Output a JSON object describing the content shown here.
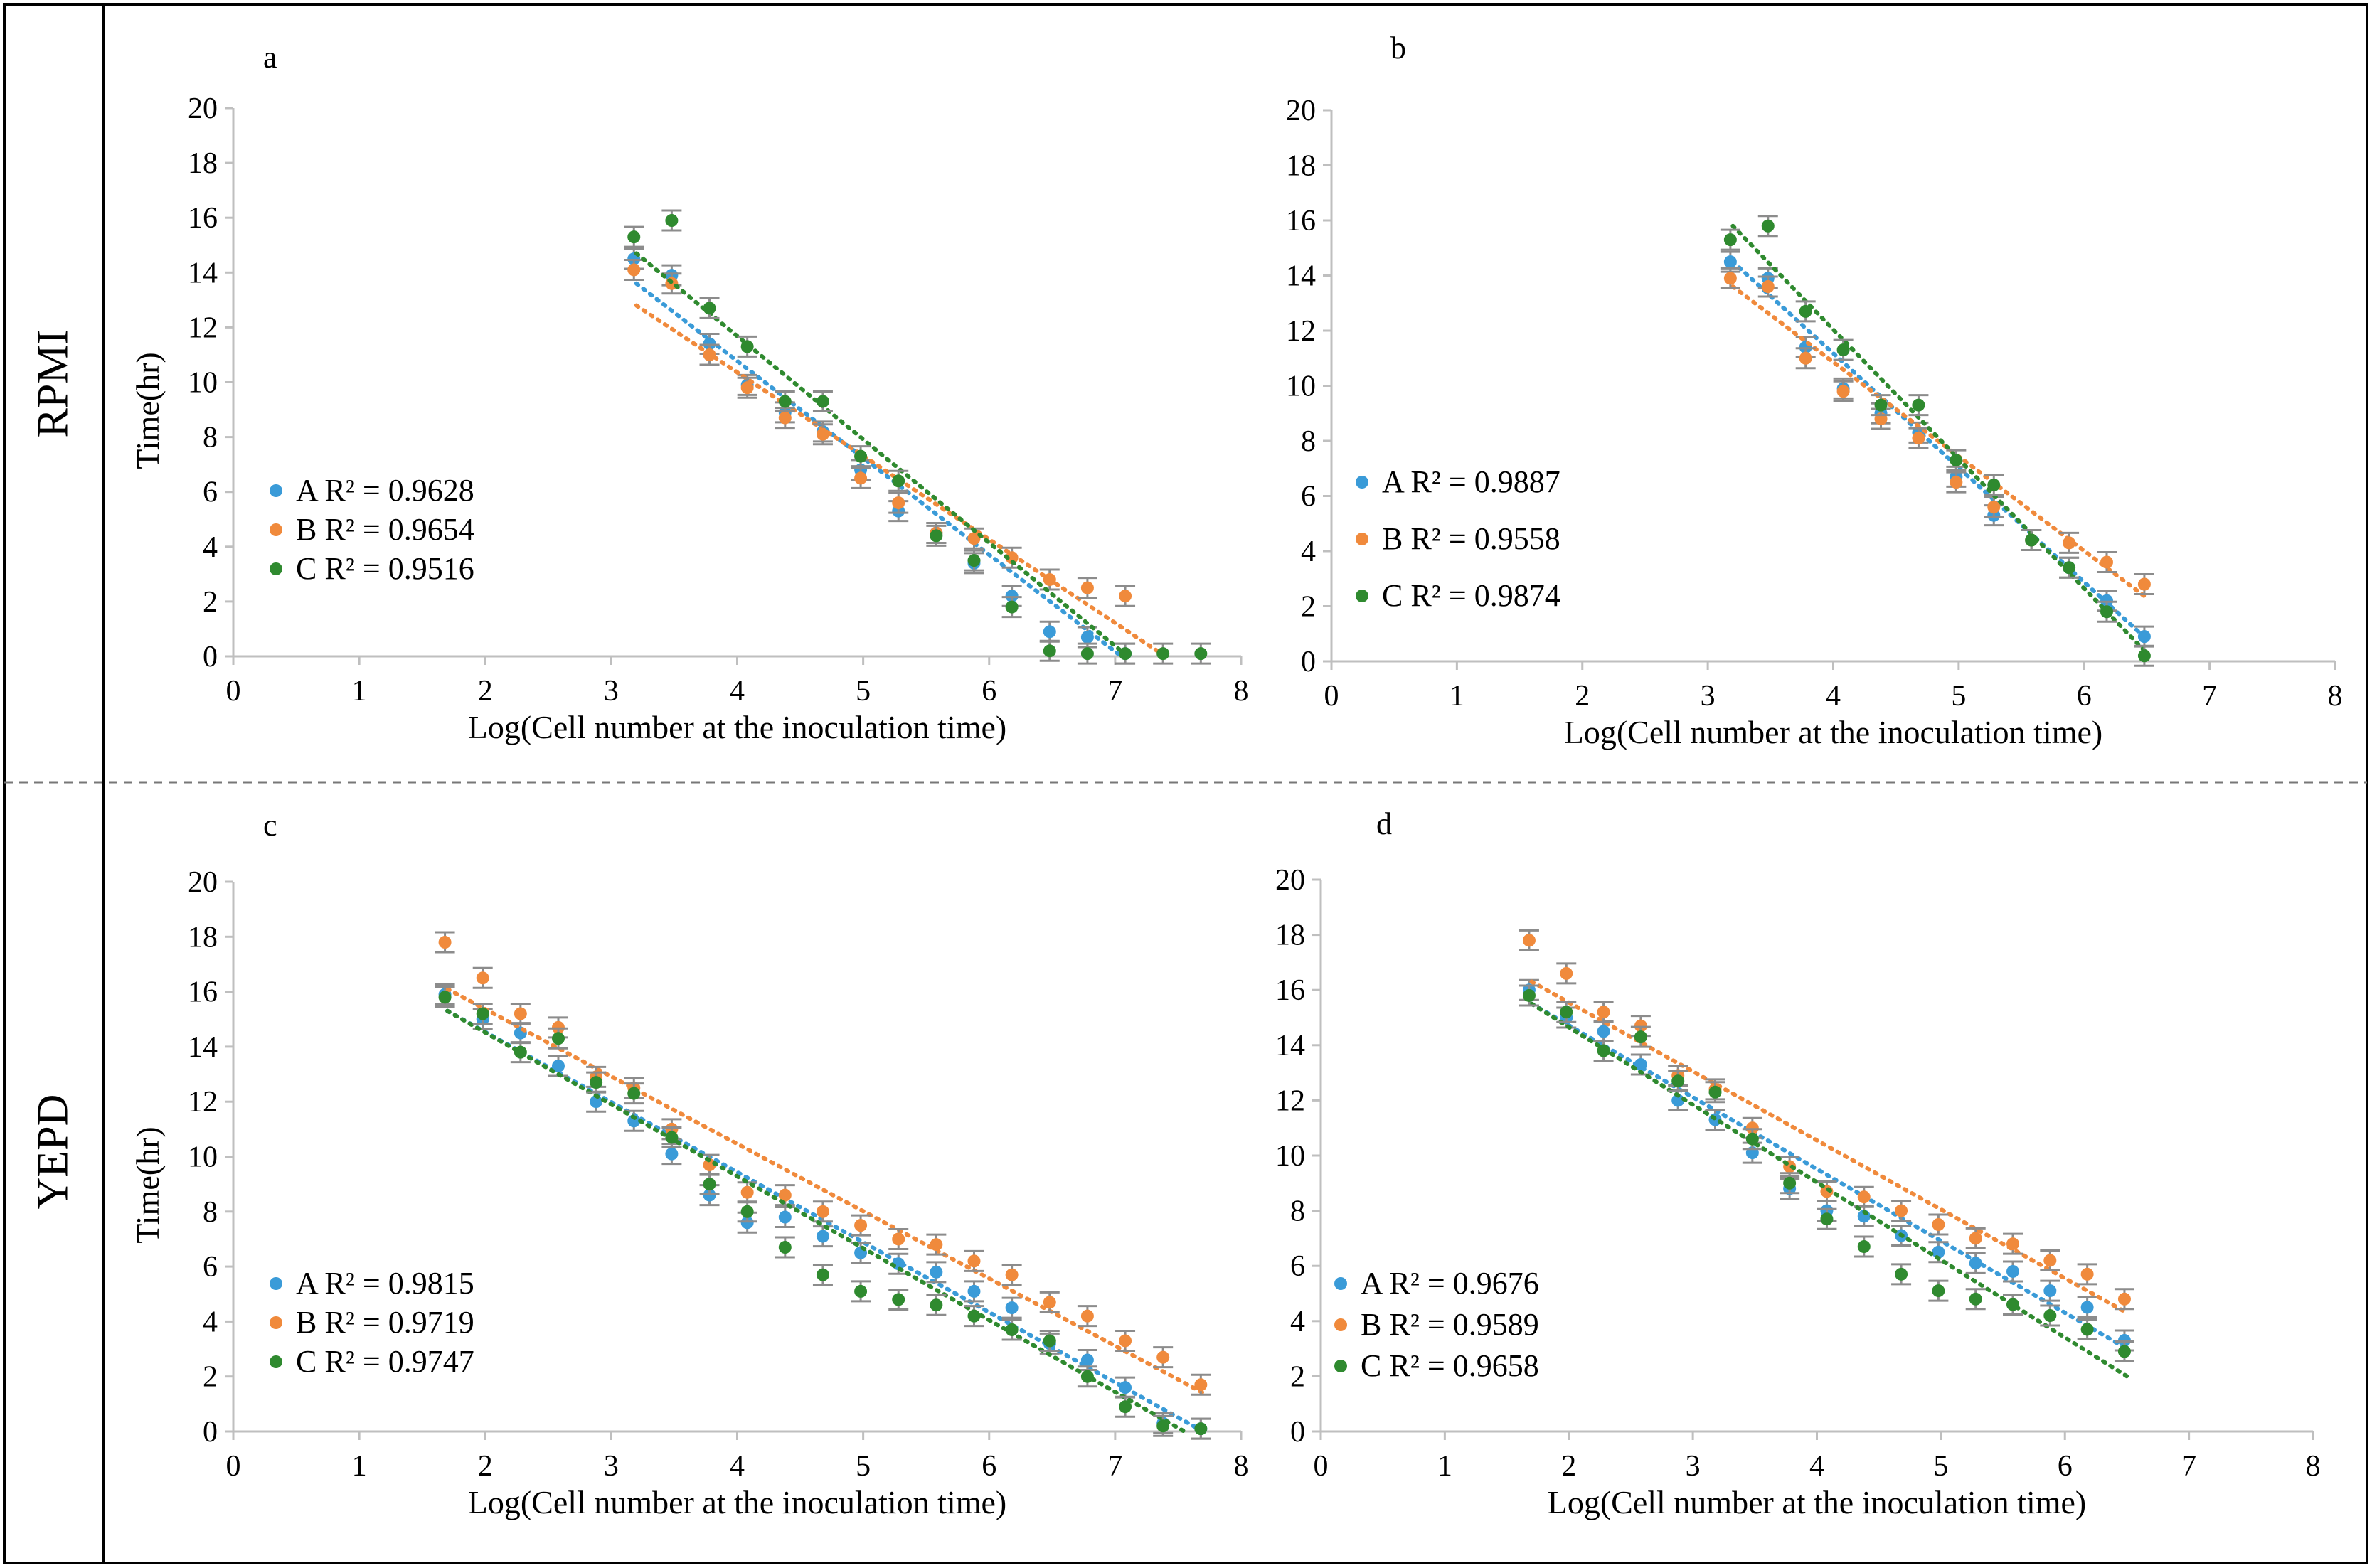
{
  "figure": {
    "row_labels": [
      "RPMI",
      "YEPD"
    ],
    "colors": {
      "A": "#3a9bd8",
      "B": "#f08a3c",
      "C": "#2f8a2f",
      "errorbar": "#8c8c8c",
      "border": "#000000"
    }
  },
  "chart_data": [
    {
      "panel": "a",
      "type": "scatter",
      "xlabel": "Log(Cell number at the inoculation time)",
      "ylabel": "Time(hr)",
      "xlim": [
        0,
        8
      ],
      "ylim": [
        0,
        20
      ],
      "xticks": [
        "0",
        "1",
        "2",
        "3",
        "4",
        "5",
        "6",
        "7",
        "8"
      ],
      "yticks": [
        "0",
        "2",
        "4",
        "6",
        "8",
        "10",
        "12",
        "14",
        "16",
        "18",
        "20"
      ],
      "legend": [
        {
          "series": "A",
          "text": "A R² = 0.9628"
        },
        {
          "series": "B",
          "text": "B  R² = 0.9654"
        },
        {
          "series": "C",
          "text": "C  R² = 0.9516"
        }
      ],
      "series": [
        {
          "name": "A",
          "x": [
            3.18,
            3.48,
            3.78,
            4.08,
            4.38,
            4.68,
            4.98,
            5.28,
            5.58,
            5.88,
            6.18,
            6.48,
            6.78,
            7.08
          ],
          "y": [
            14.5,
            13.9,
            11.4,
            9.9,
            8.9,
            8.2,
            6.8,
            5.3,
            4.5,
            3.4,
            2.2,
            0.9,
            0.7,
            0.1
          ],
          "trend": [
            [
              3.2,
              13.6
            ],
            [
              7.05,
              0.0
            ]
          ]
        },
        {
          "name": "B",
          "x": [
            3.18,
            3.48,
            3.78,
            4.08,
            4.38,
            4.68,
            4.98,
            5.28,
            5.58,
            5.88,
            6.18,
            6.48,
            6.78,
            7.08
          ],
          "y": [
            14.1,
            13.6,
            11.0,
            9.8,
            8.7,
            8.1,
            6.5,
            5.6,
            4.5,
            4.3,
            3.6,
            2.8,
            2.5,
            2.2
          ],
          "trend": [
            [
              3.2,
              12.8
            ],
            [
              7.4,
              0.0
            ]
          ]
        },
        {
          "name": "C",
          "x": [
            3.18,
            3.48,
            3.78,
            4.08,
            4.38,
            4.68,
            4.98,
            5.28,
            5.58,
            5.88,
            6.18,
            6.48,
            6.78,
            7.08,
            7.38,
            7.68
          ],
          "y": [
            15.3,
            15.9,
            12.7,
            11.3,
            9.3,
            9.3,
            7.3,
            6.4,
            4.4,
            3.5,
            1.8,
            0.2,
            0.1,
            0.1,
            0.1,
            0.1
          ],
          "trend": [
            [
              3.2,
              14.7
            ],
            [
              7.1,
              0.0
            ]
          ]
        }
      ]
    },
    {
      "panel": "b",
      "type": "scatter",
      "xlabel": "Log(Cell number at the inoculation time)",
      "ylabel": "",
      "xlim": [
        0,
        8
      ],
      "ylim": [
        0,
        20
      ],
      "xticks": [
        "0",
        "1",
        "2",
        "3",
        "4",
        "5",
        "6",
        "7",
        "8"
      ],
      "yticks": [
        "0",
        "2",
        "4",
        "6",
        "8",
        "10",
        "12",
        "14",
        "16",
        "18",
        "20"
      ],
      "legend": [
        {
          "series": "A",
          "text": "A R² = 0.9887"
        },
        {
          "series": "B",
          "text": "B  R² = 0.9558"
        },
        {
          "series": "C",
          "text": "C R² = 0.9874"
        }
      ],
      "series": [
        {
          "name": "A",
          "x": [
            3.18,
            3.48,
            3.78,
            4.08,
            4.38,
            4.68,
            4.98,
            5.28,
            5.58,
            5.88,
            6.18,
            6.48
          ],
          "y": [
            14.5,
            13.9,
            11.4,
            9.9,
            9.0,
            8.3,
            6.7,
            5.3,
            4.4,
            3.4,
            2.2,
            0.9
          ],
          "trend": [
            [
              3.2,
              14.5
            ],
            [
              6.5,
              0.8
            ]
          ]
        },
        {
          "name": "B",
          "x": [
            3.18,
            3.48,
            3.78,
            4.08,
            4.38,
            4.68,
            4.98,
            5.28,
            5.58,
            5.88,
            6.18,
            6.48
          ],
          "y": [
            13.9,
            13.6,
            11.0,
            9.8,
            8.8,
            8.1,
            6.5,
            5.6,
            4.4,
            4.3,
            3.6,
            2.8
          ],
          "trend": [
            [
              3.2,
              13.6
            ],
            [
              6.5,
              2.3
            ]
          ]
        },
        {
          "name": "C",
          "x": [
            3.18,
            3.48,
            3.78,
            4.08,
            4.38,
            4.68,
            4.98,
            5.28,
            5.58,
            5.88,
            6.18,
            6.48
          ],
          "y": [
            15.3,
            15.8,
            12.7,
            11.3,
            9.3,
            9.3,
            7.3,
            6.4,
            4.4,
            3.4,
            1.8,
            0.2
          ],
          "trend": [
            [
              3.2,
              15.8
            ],
            [
              6.5,
              0.3
            ]
          ]
        }
      ]
    },
    {
      "panel": "c",
      "type": "scatter",
      "xlabel": "Log(Cell number at the inoculation time)",
      "ylabel": "Time(hr)",
      "xlim": [
        0,
        8
      ],
      "ylim": [
        0,
        20
      ],
      "xticks": [
        "0",
        "1",
        "2",
        "3",
        "4",
        "5",
        "6",
        "7",
        "8"
      ],
      "yticks": [
        "0",
        "2",
        "4",
        "6",
        "8",
        "10",
        "12",
        "14",
        "16",
        "18",
        "20"
      ],
      "legend": [
        {
          "series": "A",
          "text": "A R² = 0.9815"
        },
        {
          "series": "B",
          "text": "B  R² = 0.9719"
        },
        {
          "series": "C",
          "text": "C  R² = 0.9747"
        }
      ],
      "series": [
        {
          "name": "A",
          "x": [
            1.68,
            1.98,
            2.28,
            2.58,
            2.88,
            3.18,
            3.48,
            3.78,
            4.08,
            4.38,
            4.68,
            4.98,
            5.28,
            5.58,
            5.88,
            6.18,
            6.48,
            6.78,
            7.08,
            7.38,
            7.68
          ],
          "y": [
            15.9,
            15.0,
            14.5,
            13.3,
            12.0,
            11.3,
            10.1,
            8.6,
            7.6,
            7.8,
            7.1,
            6.5,
            6.1,
            5.8,
            5.1,
            4.5,
            3.2,
            2.6,
            1.6,
            0.3,
            0.1
          ],
          "trend": [
            [
              1.7,
              15.3
            ],
            [
              7.7,
              0.0
            ]
          ]
        },
        {
          "name": "B",
          "x": [
            1.68,
            1.98,
            2.28,
            2.58,
            2.88,
            3.18,
            3.48,
            3.78,
            4.08,
            4.38,
            4.68,
            4.98,
            5.28,
            5.58,
            5.88,
            6.18,
            6.48,
            6.78,
            7.08,
            7.38,
            7.68
          ],
          "y": [
            17.8,
            16.5,
            15.2,
            14.7,
            12.9,
            12.5,
            11.0,
            9.7,
            8.7,
            8.6,
            8.0,
            7.5,
            7.0,
            6.8,
            6.2,
            5.7,
            4.7,
            4.2,
            3.3,
            2.7,
            1.7
          ],
          "trend": [
            [
              1.7,
              16.1
            ],
            [
              7.7,
              1.4
            ]
          ]
        },
        {
          "name": "C",
          "x": [
            1.68,
            1.98,
            2.28,
            2.58,
            2.88,
            3.18,
            3.48,
            3.78,
            4.08,
            4.38,
            4.68,
            4.98,
            5.28,
            5.58,
            5.88,
            6.18,
            6.48,
            6.78,
            7.08,
            7.38,
            7.68
          ],
          "y": [
            15.8,
            15.2,
            13.8,
            14.3,
            12.7,
            12.3,
            10.7,
            9.0,
            8.0,
            6.7,
            5.7,
            5.1,
            4.8,
            4.6,
            4.2,
            3.7,
            3.3,
            2.0,
            0.9,
            0.2,
            0.1
          ],
          "trend": [
            [
              1.7,
              15.3
            ],
            [
              7.55,
              0.0
            ]
          ]
        }
      ]
    },
    {
      "panel": "d",
      "type": "scatter",
      "xlabel": "Log(Cell number at the inoculation time)",
      "ylabel": "",
      "xlim": [
        0,
        8
      ],
      "ylim": [
        0,
        20
      ],
      "xticks": [
        "0",
        "1",
        "2",
        "3",
        "4",
        "5",
        "6",
        "7",
        "8"
      ],
      "yticks": [
        "0",
        "2",
        "4",
        "6",
        "8",
        "10",
        "12",
        "14",
        "16",
        "18",
        "20"
      ],
      "legend": [
        {
          "series": "A",
          "text": "A  R² = 0.9676"
        },
        {
          "series": "B",
          "text": "B  R² = 0.9589"
        },
        {
          "series": "C",
          "text": "C  R² = 0.9658"
        }
      ],
      "series": [
        {
          "name": "A",
          "x": [
            1.68,
            1.98,
            2.28,
            2.58,
            2.88,
            3.18,
            3.48,
            3.78,
            4.08,
            4.38,
            4.68,
            4.98,
            5.28,
            5.58,
            5.88,
            6.18,
            6.48
          ],
          "y": [
            16.0,
            15.0,
            14.5,
            13.3,
            12.0,
            11.3,
            10.1,
            8.8,
            8.0,
            7.8,
            7.1,
            6.5,
            6.1,
            5.8,
            5.1,
            4.5,
            3.3
          ],
          "trend": [
            [
              1.7,
              15.5
            ],
            [
              6.5,
              3.0
            ]
          ]
        },
        {
          "name": "B",
          "x": [
            1.68,
            1.98,
            2.28,
            2.58,
            2.88,
            3.18,
            3.48,
            3.78,
            4.08,
            4.38,
            4.68,
            4.98,
            5.28,
            5.58,
            5.88,
            6.18,
            6.48
          ],
          "y": [
            17.8,
            16.6,
            15.2,
            14.7,
            12.9,
            12.4,
            11.0,
            9.6,
            8.7,
            8.5,
            8.0,
            7.5,
            7.0,
            6.8,
            6.2,
            5.7,
            4.8
          ],
          "trend": [
            [
              1.7,
              16.3
            ],
            [
              6.5,
              4.3
            ]
          ]
        },
        {
          "name": "C",
          "x": [
            1.68,
            1.98,
            2.28,
            2.58,
            2.88,
            3.18,
            3.48,
            3.78,
            4.08,
            4.38,
            4.68,
            4.98,
            5.28,
            5.58,
            5.88,
            6.18,
            6.48
          ],
          "y": [
            15.8,
            15.2,
            13.8,
            14.3,
            12.7,
            12.3,
            10.6,
            9.0,
            7.7,
            6.7,
            5.7,
            5.1,
            4.8,
            4.6,
            4.2,
            3.7,
            2.9
          ],
          "trend": [
            [
              1.7,
              15.5
            ],
            [
              6.5,
              2.0
            ]
          ]
        }
      ]
    }
  ]
}
